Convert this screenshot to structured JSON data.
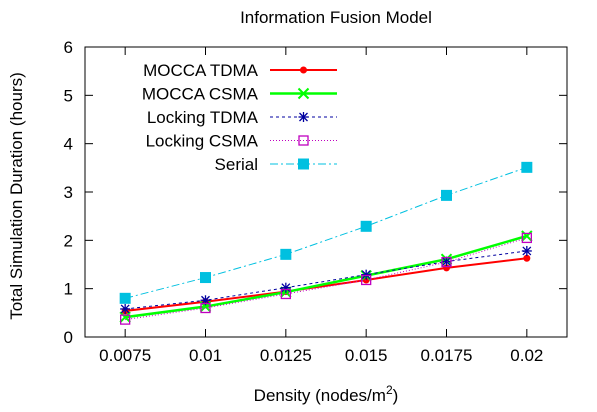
{
  "chart_data": {
    "type": "line",
    "title": "Information Fusion Model",
    "xlabel_main": "Density (nodes/m",
    "xlabel_sup": "2",
    "xlabel_close": ")",
    "ylabel": "Total Simulation Duration (hours)",
    "x": [
      0.0075,
      0.01,
      0.0125,
      0.015,
      0.0175,
      0.02
    ],
    "x_tick_labels": [
      "0.0075",
      "0.01",
      "0.0125",
      "0.015",
      "0.0175",
      "0.02"
    ],
    "xlim": [
      0.00625,
      0.02125
    ],
    "ylim": [
      0,
      6
    ],
    "y_ticks": [
      0,
      1,
      2,
      3,
      4,
      5,
      6
    ],
    "grid": false,
    "legend_position": "top-left",
    "series": [
      {
        "name": "MOCCA TDMA",
        "color": "#ff0000",
        "dash": "",
        "width": 2,
        "marker": "dot",
        "values": [
          0.54,
          0.73,
          0.94,
          1.18,
          1.43,
          1.63
        ]
      },
      {
        "name": "MOCCA CSMA",
        "color": "#00ff00",
        "dash": "",
        "width": 2.5,
        "marker": "x",
        "values": [
          0.41,
          0.63,
          0.93,
          1.27,
          1.61,
          2.09
        ]
      },
      {
        "name": "Locking TDMA",
        "color": "#0000a0",
        "dash": "3,3",
        "width": 1,
        "marker": "star",
        "values": [
          0.58,
          0.76,
          1.02,
          1.29,
          1.56,
          1.78
        ]
      },
      {
        "name": "Locking CSMA",
        "color": "#c000c0",
        "dash": "1,2",
        "width": 1,
        "marker": "square-open",
        "values": [
          0.36,
          0.6,
          0.89,
          1.18,
          1.55,
          2.05
        ]
      },
      {
        "name": "Serial",
        "color": "#00c0e0",
        "dash": "8,3,2,3",
        "width": 1,
        "marker": "square-filled",
        "values": [
          0.8,
          1.23,
          1.71,
          2.29,
          2.93,
          3.51
        ]
      }
    ]
  }
}
